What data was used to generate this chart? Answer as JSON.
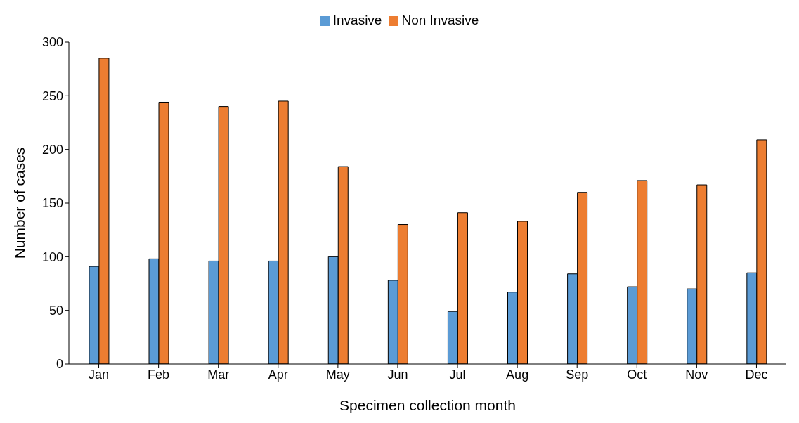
{
  "chart_data": {
    "type": "bar",
    "xlabel": "Specimen collection month",
    "ylabel": "Number of cases",
    "categories": [
      "Jan",
      "Feb",
      "Mar",
      "Apr",
      "May",
      "Jun",
      "Jul",
      "Aug",
      "Sep",
      "Oct",
      "Nov",
      "Dec"
    ],
    "series": [
      {
        "name": "Invasive",
        "color": "#5b9bd5",
        "values": [
          91,
          98,
          96,
          96,
          100,
          78,
          49,
          67,
          84,
          72,
          70,
          85
        ]
      },
      {
        "name": "Non Invasive",
        "color": "#ed7d31",
        "values": [
          285,
          244,
          240,
          245,
          184,
          130,
          141,
          133,
          160,
          171,
          167,
          209
        ]
      }
    ],
    "ylim": [
      0,
      300
    ],
    "yticks": [
      0,
      50,
      100,
      150,
      200,
      250,
      300
    ],
    "grid": false,
    "legend": "top"
  }
}
